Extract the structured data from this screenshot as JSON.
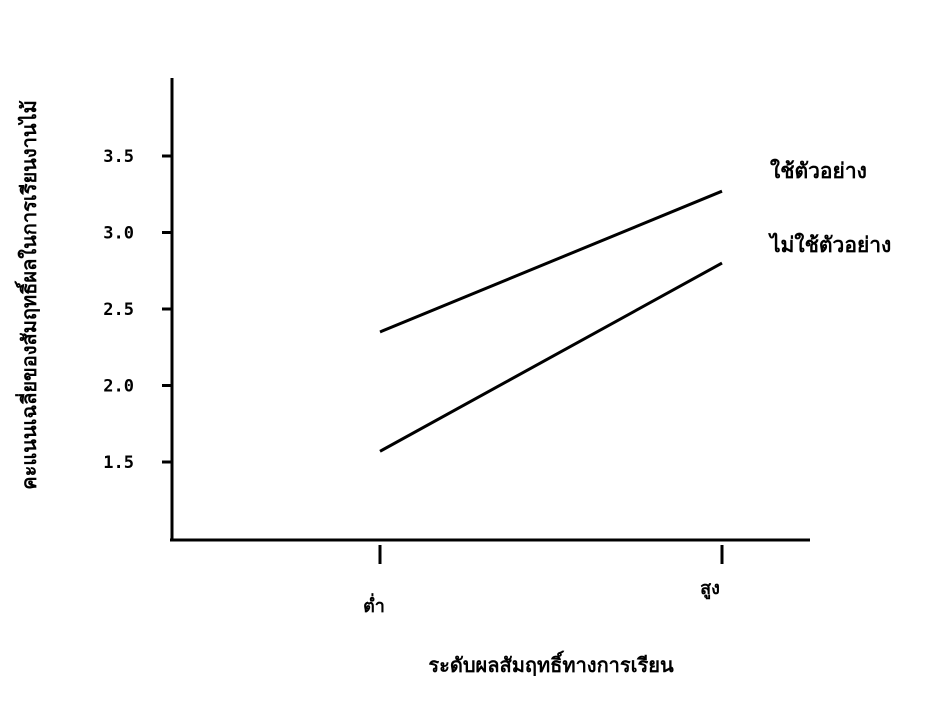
{
  "chart_data": {
    "type": "line",
    "title": "",
    "xlabel": "ระดับผลสัมฤทธิ์ทางการเรียน",
    "ylabel": "คะแนนเฉลี่ยของสัมฤทธิ์ผลในการเรียนงานไม้",
    "categories": [
      "ต่ำ",
      "สูง"
    ],
    "yticks": [
      "1.5",
      "2.0",
      "2.5",
      "3.0",
      "3.5"
    ],
    "ylim": [
      1.0,
      4.0
    ],
    "grid": false,
    "legend": "right",
    "series": [
      {
        "name": "ใช้ตัวอย่าง",
        "values": [
          2.35,
          3.27
        ]
      },
      {
        "name": "ไม่ใช้ตัวอย่าง",
        "values": [
          1.57,
          2.8
        ]
      }
    ]
  }
}
